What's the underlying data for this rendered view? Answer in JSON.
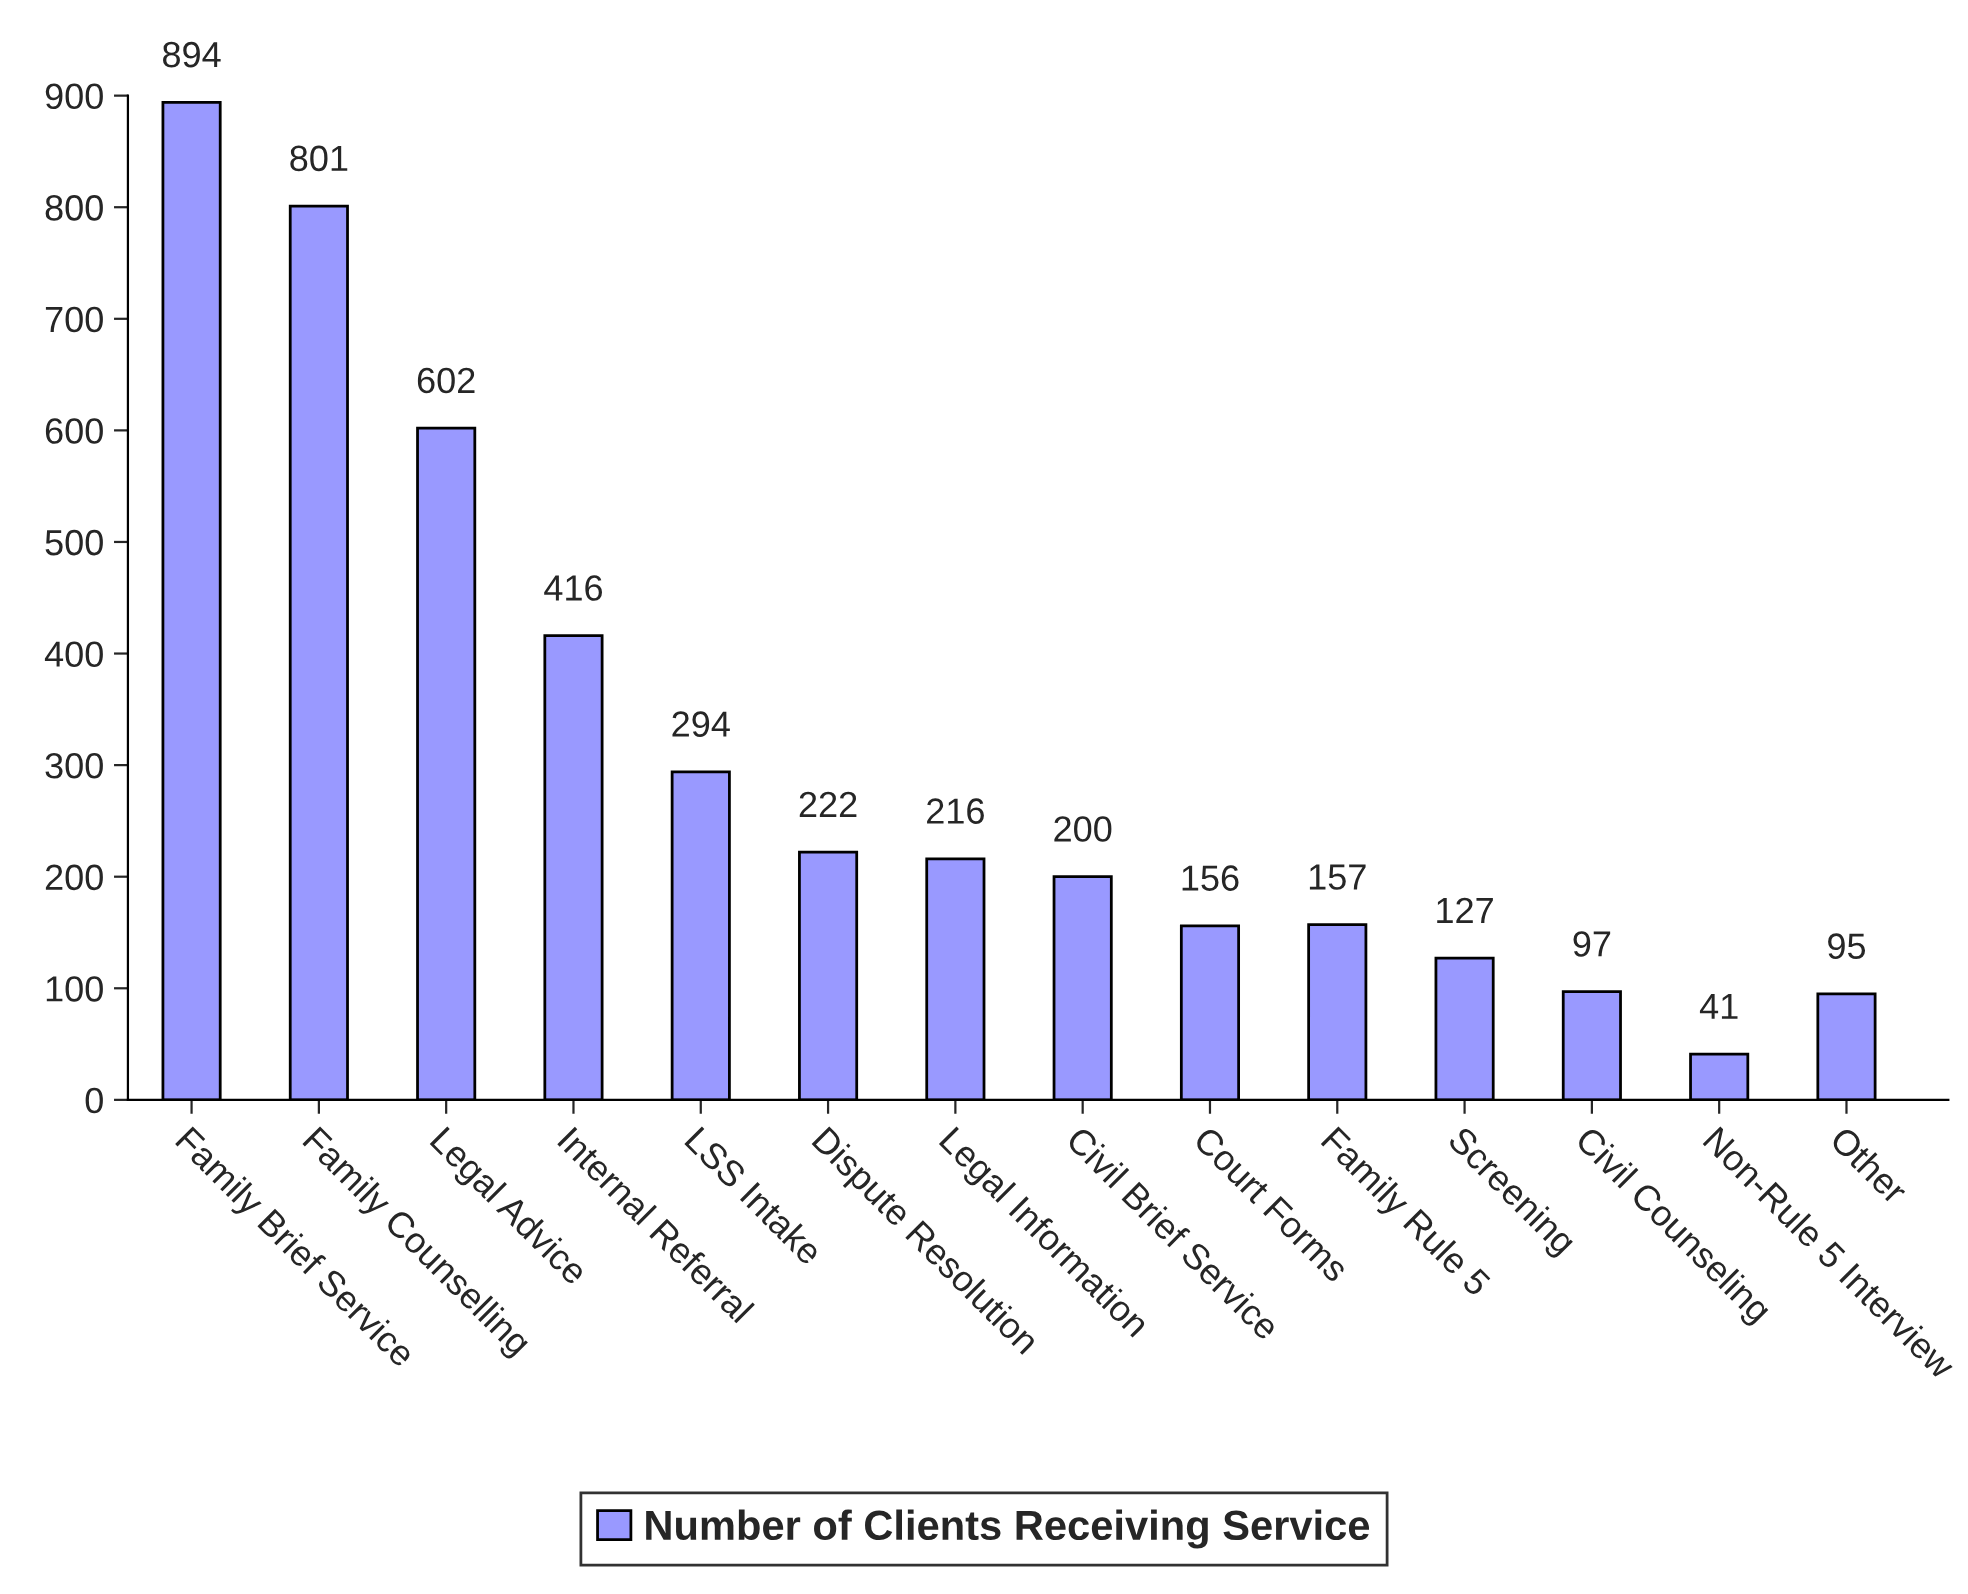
{
  "chart_data": {
    "type": "bar",
    "categories": [
      "Family Brief Service",
      "Family Counselling",
      "Legal Advice",
      "Internal Referral",
      "LSS Intake",
      "Dispute Resolution",
      "Legal Information",
      "Civil Brief Service",
      "Court Forms",
      "Family Rule 5",
      "Screening",
      "Civil Counseling",
      "Non-Rule 5 Interview",
      "Other"
    ],
    "series": [
      {
        "name": "Number of Clients Receiving Service",
        "color": "#9999ff",
        "values": [
          894,
          801,
          602,
          416,
          294,
          222,
          216,
          200,
          156,
          157,
          127,
          97,
          41,
          95
        ]
      }
    ],
    "ylim": [
      0,
      900
    ],
    "yticks": [
      0,
      100,
      200,
      300,
      400,
      500,
      600,
      700,
      800,
      900
    ],
    "data_labels": true,
    "grid": false,
    "legend": "bottom"
  }
}
